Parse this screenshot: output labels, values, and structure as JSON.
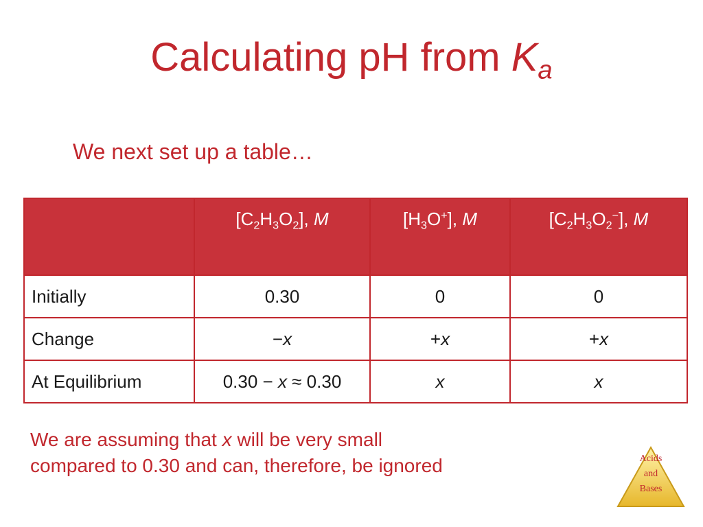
{
  "title": {
    "text": "Calculating pH from ",
    "k": "K",
    "a": "a"
  },
  "subtitle": "We next set up a table…",
  "table": {
    "headers": {
      "col1": {
        "open": "[C",
        "s1": "2",
        "h": "H",
        "s2": "3",
        "o": "O",
        "s3": "2",
        "close": "],",
        "unit": "M"
      },
      "col2": {
        "open": "[H",
        "s1": "3",
        "o": "O",
        "sup": "+",
        "close": "],",
        "unit": "M"
      },
      "col3": {
        "open": "[C",
        "s1": "2",
        "h": "H",
        "s2": "3",
        "o": "O",
        "s3": "2",
        "sup": "−",
        "close": "],",
        "unit": "M"
      }
    },
    "rows": [
      {
        "label": "Initially",
        "c1": "0.30",
        "c2": "0",
        "c3": "0"
      },
      {
        "label": "Change",
        "c1_sign": "−",
        "c1_x": "x",
        "c2_sign": "+",
        "c2_x": "x",
        "c3_sign": "+",
        "c3_x": "x"
      },
      {
        "label": "At Equilibrium",
        "c1_pre": "0.30 − ",
        "c1_x": "x",
        "c1_post": " ≈ 0.30",
        "c2_x": "x",
        "c3_x": "x"
      }
    ]
  },
  "note": {
    "line1_pre": "We are assuming that ",
    "line1_x": "x",
    "line1_post": " will be very small",
    "line2": "compared to 0.30 and can, therefore, be ignored"
  },
  "badge": {
    "line1": "Acids",
    "line2": "and",
    "line3": "Bases",
    "colors": {
      "fill": "#f5cf45",
      "edge": "#c99a1a"
    }
  }
}
